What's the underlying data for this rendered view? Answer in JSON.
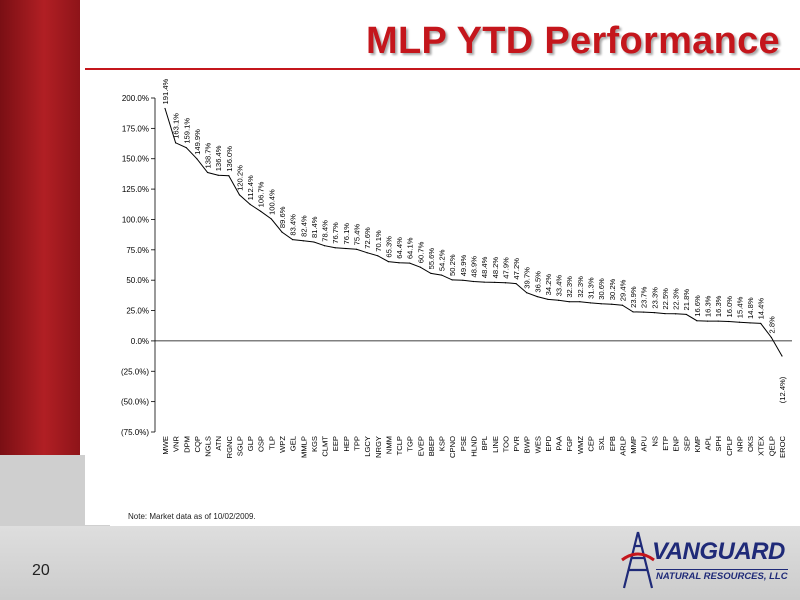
{
  "slide": {
    "title": "MLP YTD Performance",
    "note": "Note: Market data as of 10/02/2009.",
    "page_number": "20",
    "logo_name": "VANGUARD",
    "logo_subtitle": "NATURAL RESOURCES, LLC",
    "colors": {
      "accent": "#c4161c",
      "brand_blue": "#1f2a78",
      "line": "#000000"
    }
  },
  "chart_data": {
    "type": "line",
    "title": "",
    "xlabel": "",
    "ylabel": "",
    "ylim": [
      -75,
      200
    ],
    "yticks": [
      200,
      175,
      150,
      125,
      100,
      75,
      50,
      25,
      0,
      -25,
      -50,
      -75
    ],
    "ytick_labels": [
      "200.0%",
      "175.0%",
      "150.0%",
      "125.0%",
      "100.0%",
      "75.0%",
      "50.0%",
      "25.0%",
      "0.0%",
      "(25.0%)",
      "(50.0%)",
      "(75.0%)"
    ],
    "grid": false,
    "categories": [
      "MWE",
      "VNR",
      "DPM",
      "CQP",
      "NGLS",
      "ATN",
      "RGNC",
      "SGLP",
      "GLP",
      "OSP",
      "TLP",
      "WPZ",
      "GEL",
      "MMLP",
      "KGS",
      "CLMT",
      "EEP",
      "HEP",
      "TPP",
      "LGCY",
      "NRGY",
      "NMM",
      "TCLP",
      "TGP",
      "EVEP",
      "BBEP",
      "KSP",
      "CPNO",
      "PSE",
      "HLND",
      "BPL",
      "LINE",
      "TOO",
      "PVR",
      "BWP",
      "WES",
      "EPD",
      "PAA",
      "FGP",
      "WMZ",
      "CEP",
      "SXL",
      "EPB",
      "ARLP",
      "MMP",
      "APU",
      "NS",
      "ETP",
      "ENP",
      "SEP",
      "KMP",
      "APL",
      "SPH",
      "CPLP",
      "NRP",
      "OKS",
      "XTEX",
      "QELP",
      "EROC"
    ],
    "values": [
      191.4,
      163.1,
      159.1,
      149.9,
      138.7,
      136.4,
      136.0,
      120.2,
      112.4,
      106.7,
      100.4,
      89.6,
      83.4,
      82.4,
      81.4,
      78.4,
      76.7,
      76.1,
      75.4,
      72.6,
      70.1,
      65.3,
      64.4,
      64.1,
      60.7,
      55.6,
      54.2,
      50.2,
      49.9,
      48.9,
      48.4,
      48.2,
      47.9,
      47.2,
      39.7,
      36.5,
      34.2,
      33.4,
      32.3,
      32.3,
      31.3,
      30.6,
      30.2,
      29.4,
      23.9,
      23.7,
      23.3,
      22.5,
      22.3,
      21.8,
      16.6,
      16.3,
      16.3,
      16.0,
      15.4,
      14.8,
      14.4,
      2.8,
      -12.4
    ],
    "data_labels": [
      "191.4%",
      "163.1%",
      "159.1%",
      "149.9%",
      "138.7%",
      "136.4%",
      "136.0%",
      "120.2%",
      "112.4%",
      "106.7%",
      "100.4%",
      "89.6%",
      "83.4%",
      "82.4%",
      "81.4%",
      "78.4%",
      "76.7%",
      "76.1%",
      "75.4%",
      "72.6%",
      "70.1%",
      "65.3%",
      "64.4%",
      "64.1%",
      "60.7%",
      "55.6%",
      "54.2%",
      "50.2%",
      "49.9%",
      "48.9%",
      "48.4%",
      "48.2%",
      "47.9%",
      "47.2%",
      "39.7%",
      "36.5%",
      "34.2%",
      "33.4%",
      "32.3%",
      "32.3%",
      "31.3%",
      "30.6%",
      "30.2%",
      "29.4%",
      "23.9%",
      "23.7%",
      "23.3%",
      "22.5%",
      "22.3%",
      "21.8%",
      "16.6%",
      "16.3%",
      "16.3%",
      "16.0%",
      "15.4%",
      "14.8%",
      "14.4%",
      "2.8%",
      "(12.4%)"
    ]
  }
}
